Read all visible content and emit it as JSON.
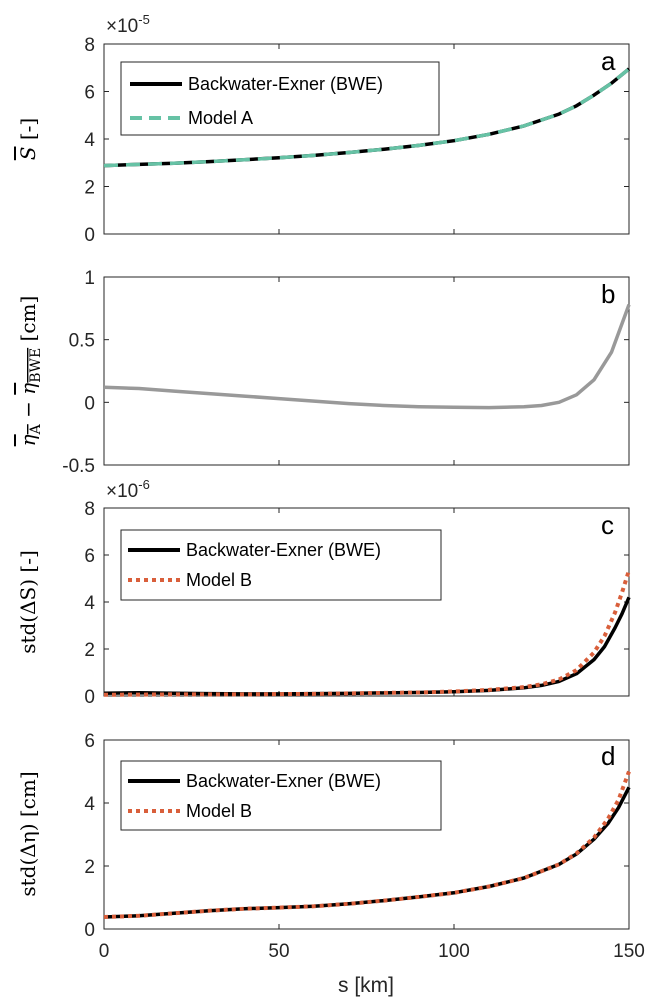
{
  "chart_data": [
    {
      "type": "line",
      "panel_label": "a",
      "ylabel_main": "S",
      "ylabel_unit": " [-]",
      "xlim": [
        0,
        150
      ],
      "ylim": [
        0,
        8
      ],
      "yticks": [
        0,
        2,
        4,
        6,
        8
      ],
      "ytick_labels": [
        "0",
        "2",
        "4",
        "6",
        "8"
      ],
      "y_exponent": {
        "base": "×10",
        "power": "-5"
      },
      "legend_position": "upper-left",
      "series": [
        {
          "name": "Backwater-Exner (BWE)",
          "color": "#000000",
          "style": "solid",
          "x": [
            0,
            10,
            20,
            30,
            40,
            50,
            60,
            70,
            80,
            90,
            100,
            110,
            120,
            130,
            135,
            140,
            145,
            150
          ],
          "y": [
            2.88,
            2.93,
            2.98,
            3.05,
            3.13,
            3.21,
            3.31,
            3.43,
            3.57,
            3.73,
            3.93,
            4.2,
            4.55,
            5.05,
            5.4,
            5.85,
            6.35,
            6.95
          ]
        },
        {
          "name": "Model A",
          "color": "#66c2a5",
          "style": "dashed",
          "x": [
            0,
            10,
            20,
            30,
            40,
            50,
            60,
            70,
            80,
            90,
            100,
            110,
            120,
            130,
            135,
            140,
            145,
            150
          ],
          "y": [
            2.88,
            2.93,
            2.98,
            3.05,
            3.13,
            3.21,
            3.31,
            3.43,
            3.57,
            3.73,
            3.93,
            4.2,
            4.55,
            5.05,
            5.4,
            5.85,
            6.35,
            6.95
          ]
        }
      ]
    },
    {
      "type": "line",
      "panel_label": "b",
      "ylabel_part1": "η",
      "ylabel_sub1": "A",
      "ylabel_minus": " − ",
      "ylabel_part2": "η",
      "ylabel_sub2": "BWE",
      "ylabel_unit": " [cm]",
      "xlim": [
        0,
        150
      ],
      "ylim": [
        -0.5,
        1
      ],
      "yticks": [
        -0.5,
        0,
        0.5,
        1
      ],
      "ytick_labels": [
        "-0.5",
        "0",
        "0.5",
        "1"
      ],
      "series": [
        {
          "color": "#999999",
          "style": "solid",
          "x": [
            0,
            10,
            20,
            30,
            40,
            50,
            60,
            70,
            80,
            90,
            100,
            110,
            120,
            125,
            130,
            135,
            140,
            145,
            150
          ],
          "y": [
            0.12,
            0.11,
            0.09,
            0.07,
            0.05,
            0.03,
            0.01,
            -0.01,
            -0.025,
            -0.035,
            -0.04,
            -0.042,
            -0.035,
            -0.025,
            0.0,
            0.06,
            0.18,
            0.4,
            0.78
          ]
        }
      ]
    },
    {
      "type": "line",
      "panel_label": "c",
      "ylabel_main": "std(ΔS)",
      "ylabel_unit": " [-]",
      "xlim": [
        0,
        150
      ],
      "ylim": [
        0,
        8
      ],
      "yticks": [
        0,
        2,
        4,
        6,
        8
      ],
      "ytick_labels": [
        "0",
        "2",
        "4",
        "6",
        "8"
      ],
      "y_exponent": {
        "base": "×10",
        "power": "-6"
      },
      "legend_position": "upper-left",
      "series": [
        {
          "name": "Backwater-Exner (BWE)",
          "color": "#000000",
          "style": "solid",
          "x": [
            0,
            10,
            20,
            30,
            40,
            50,
            60,
            70,
            80,
            90,
            100,
            110,
            120,
            125,
            130,
            135,
            140,
            143,
            146,
            148,
            150
          ],
          "y": [
            0.12,
            0.14,
            0.12,
            0.1,
            0.09,
            0.09,
            0.1,
            0.11,
            0.13,
            0.15,
            0.18,
            0.24,
            0.35,
            0.45,
            0.62,
            0.95,
            1.55,
            2.1,
            2.9,
            3.5,
            4.2
          ]
        },
        {
          "name": "Model B",
          "color": "#d95f3b",
          "style": "dotted",
          "x": [
            0,
            10,
            20,
            30,
            40,
            50,
            60,
            70,
            80,
            90,
            100,
            110,
            120,
            125,
            130,
            135,
            140,
            143,
            146,
            148,
            150
          ],
          "y": [
            0.05,
            0.06,
            0.07,
            0.07,
            0.07,
            0.08,
            0.09,
            0.11,
            0.13,
            0.15,
            0.19,
            0.26,
            0.38,
            0.5,
            0.7,
            1.1,
            1.85,
            2.55,
            3.55,
            4.4,
            5.35
          ]
        }
      ]
    },
    {
      "type": "line",
      "panel_label": "d",
      "ylabel_main": "std(Δη)",
      "ylabel_unit": " [cm]",
      "xlabel": "s [km]",
      "xlim": [
        0,
        150
      ],
      "ylim": [
        0,
        6
      ],
      "yticks": [
        0,
        2,
        4,
        6
      ],
      "ytick_labels": [
        "0",
        "2",
        "4",
        "6"
      ],
      "xticks": [
        0,
        50,
        100,
        150
      ],
      "xtick_labels": [
        "0",
        "50",
        "100",
        "150"
      ],
      "legend_position": "upper-left",
      "series": [
        {
          "name": "Backwater-Exner (BWE)",
          "color": "#000000",
          "style": "solid",
          "x": [
            0,
            10,
            20,
            30,
            40,
            50,
            60,
            70,
            80,
            90,
            100,
            110,
            120,
            130,
            135,
            140,
            144,
            147,
            150
          ],
          "y": [
            0.38,
            0.42,
            0.5,
            0.58,
            0.64,
            0.68,
            0.72,
            0.8,
            0.9,
            1.02,
            1.15,
            1.35,
            1.62,
            2.05,
            2.38,
            2.85,
            3.35,
            3.85,
            4.5
          ]
        },
        {
          "name": "Model B",
          "color": "#d95f3b",
          "style": "dotted",
          "x": [
            0,
            10,
            20,
            30,
            40,
            50,
            60,
            70,
            80,
            90,
            100,
            110,
            120,
            130,
            135,
            140,
            144,
            147,
            150
          ],
          "y": [
            0.38,
            0.42,
            0.5,
            0.58,
            0.64,
            0.68,
            0.72,
            0.8,
            0.9,
            1.02,
            1.15,
            1.35,
            1.62,
            2.05,
            2.4,
            2.9,
            3.5,
            4.1,
            5.0
          ]
        }
      ]
    }
  ],
  "colors": {
    "axis": "#262626",
    "bwe": "#000000",
    "model_a": "#66c2a5",
    "model_b": "#d95f3b",
    "diff": "#999999"
  }
}
